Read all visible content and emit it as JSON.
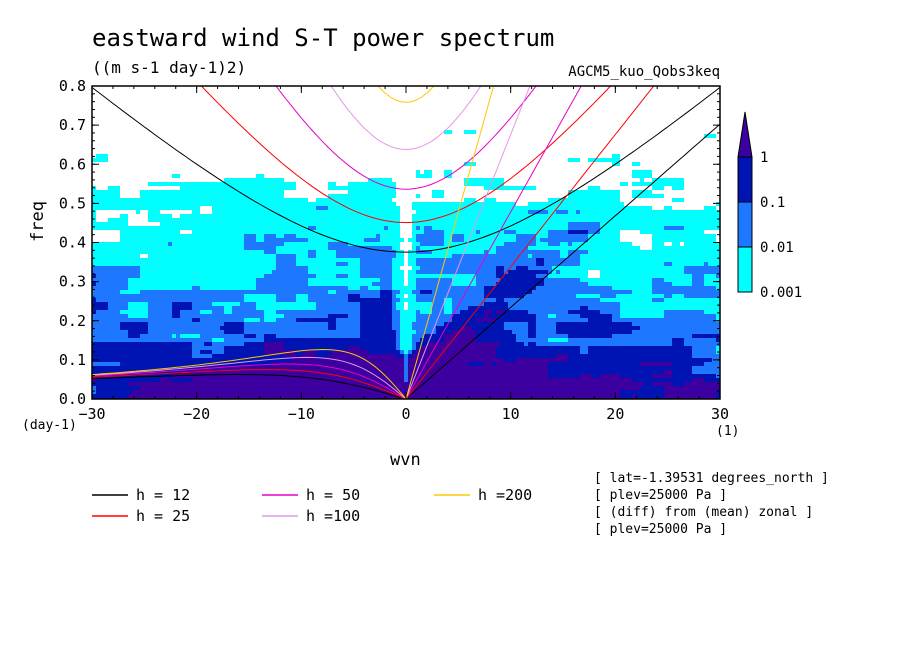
{
  "header": {
    "title": "eastward wind S-T power spectrum",
    "units": "((m s-1 day-1)2)",
    "model": "AGCM5_kuo_Qobs3keq"
  },
  "chart_data": {
    "type": "heatmap",
    "xlabel": "wvn",
    "ylabel": "freq",
    "x_unit": "(1)",
    "y_unit": "(day-1)",
    "xlim": [
      -30,
      30
    ],
    "ylim": [
      0,
      0.8
    ],
    "x_ticks": [
      "-30",
      "-20",
      "-10",
      "0",
      "10",
      "20",
      "30"
    ],
    "y_ticks": [
      "0.0",
      "0.1",
      "0.2",
      "0.3",
      "0.4",
      "0.5",
      "0.6",
      "0.7",
      "0.8"
    ],
    "colorbar": {
      "levels": [
        "0.001",
        "0.01",
        "0.1",
        "1"
      ],
      "colors": [
        "#00ffff",
        "#1e78ff",
        "#0014b4",
        "#3c00a0"
      ]
    },
    "dispersion_curves": [
      {
        "name": "h = 12",
        "h": 12,
        "color": "#000000"
      },
      {
        "name": "h = 25",
        "h": 25,
        "color": "#ff0000"
      },
      {
        "name": "h = 50",
        "h": 50,
        "color": "#e600c8"
      },
      {
        "name": "h =100",
        "h": 100,
        "color": "#e696e6"
      },
      {
        "name": "h =200",
        "h": 200,
        "color": "#ffc800"
      }
    ]
  },
  "info_lines": [
    "[ lat=-1.39531 degrees_north ]",
    "[ plev=25000 Pa ]",
    "[ (diff) from (mean) zonal ]",
    "[ plev=25000 Pa ]"
  ]
}
